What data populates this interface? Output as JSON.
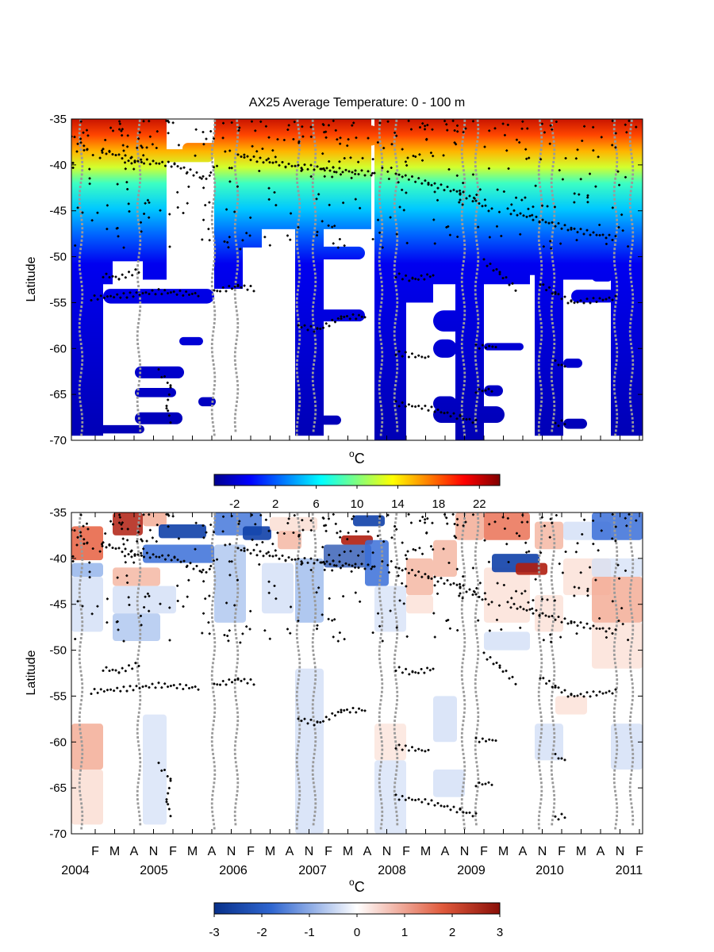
{
  "chart_data": [
    {
      "type": "heatmap",
      "title": "AX25 Average Temperature: 0 - 100 m",
      "ylabel": "Latitude",
      "xlabel": "",
      "ylim": [
        -70,
        -35
      ],
      "yticks": [
        -35,
        -40,
        -45,
        -50,
        -55,
        -60,
        -65,
        -70
      ],
      "colorbar": {
        "label": "oC",
        "range": [
          -4,
          24
        ],
        "ticks": [
          -2,
          2,
          6,
          10,
          14,
          18,
          22
        ],
        "colormap": "jet"
      },
      "values_by_latitude": {
        "latitude": [
          -36,
          -38,
          -40,
          -42,
          -44,
          -46,
          -48,
          -50,
          -52,
          -54,
          -60,
          -66,
          -69
        ],
        "temperature_c": [
          21,
          18,
          15,
          11,
          8,
          6,
          4,
          3,
          2,
          1,
          0,
          -1,
          -1
        ]
      }
    },
    {
      "type": "heatmap",
      "title": "",
      "ylabel": "Latitude",
      "xlabel": "",
      "ylim": [
        -70,
        -35
      ],
      "yticks": [
        -35,
        -40,
        -45,
        -50,
        -55,
        -60,
        -65,
        -70
      ],
      "colorbar": {
        "label": "oC",
        "range": [
          -3,
          3
        ],
        "ticks": [
          -3,
          -2,
          -1,
          0,
          1,
          2,
          3
        ],
        "colormap": "blue-white-red"
      },
      "month_ticks": [
        "F",
        "M",
        "A",
        "N",
        "F",
        "M",
        "A",
        "N",
        "F",
        "M",
        "A",
        "N",
        "F",
        "M",
        "A",
        "N",
        "F",
        "M",
        "A",
        "N",
        "F",
        "M",
        "A",
        "N",
        "F",
        "M",
        "A",
        "N",
        "F"
      ],
      "year_labels": [
        "2004",
        "2005",
        "2006",
        "2007",
        "2008",
        "2009",
        "2010",
        "2011"
      ]
    }
  ],
  "figure": {
    "title": "AX25 Average Temperature: 0 - 100 m",
    "top_ylabel": "Latitude",
    "bottom_ylabel": "Latitude",
    "unit_label_sup": "o",
    "unit_label_main": "C"
  },
  "colors": {
    "jet": [
      "#00008f",
      "#0000ff",
      "#00ffff",
      "#ffff00",
      "#ff8000",
      "#800000"
    ],
    "anomaly": [
      "#08308a",
      "#3a6fd8",
      "#ffffff",
      "#e8684a",
      "#8a0f08"
    ],
    "obs_gray": "#9a9a9a",
    "obs_black": "#000000"
  }
}
